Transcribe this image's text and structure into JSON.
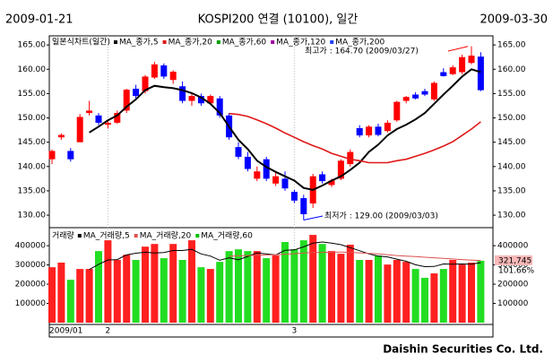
{
  "header": {
    "start_date": "2009-01-21",
    "title": "KOSPI200 연결 (10100), 일간",
    "end_date": "2009-03-30"
  },
  "chart_data": [
    {
      "type": "candlestick",
      "legend_title": "일본식차트(일간)",
      "categories": [
        "2009/01",
        null,
        null,
        null,
        null,
        null,
        "2",
        null,
        null,
        null,
        null,
        null,
        null,
        null,
        null,
        null,
        null,
        null,
        null,
        null,
        null,
        null,
        null,
        null,
        null,
        null,
        "3",
        null,
        null,
        null,
        null,
        null,
        null,
        null,
        null,
        null,
        null,
        null,
        null,
        null,
        null,
        null,
        null,
        null,
        null,
        null,
        null
      ],
      "open": [
        141.5,
        146.0,
        143.2,
        145.0,
        151.0,
        150.5,
        148.6,
        149.0,
        151.5,
        156.0,
        155.5,
        158.3,
        160.8,
        157.8,
        156.5,
        153.5,
        154.5,
        153.0,
        154.0,
        150.5,
        144.0,
        142.0,
        137.5,
        141.5,
        136.5,
        137.5,
        134.8,
        133.5,
        132.4,
        138.4,
        136.2,
        137.5,
        140.5,
        147.9,
        146.4,
        148.2,
        147.3,
        149.5,
        153.5,
        154.8,
        155.5,
        153.8,
        159.4,
        159.0,
        159.4,
        161.3,
        162.6
      ],
      "high": [
        143.5,
        146.8,
        143.8,
        150.8,
        153.5,
        151.0,
        149.5,
        151.5,
        156.0,
        156.8,
        158.8,
        161.5,
        161.2,
        159.8,
        157.5,
        155.0,
        155.0,
        154.8,
        154.5,
        151.0,
        145.0,
        143.0,
        140.0,
        142.0,
        139.0,
        139.0,
        135.2,
        134.2,
        138.5,
        139.0,
        137.5,
        141.5,
        143.5,
        148.5,
        148.5,
        148.8,
        149.5,
        153.5,
        154.5,
        155.3,
        156.0,
        157.5,
        160.2,
        160.8,
        163.0,
        164.7,
        163.5
      ],
      "low": [
        140.5,
        145.5,
        141.0,
        145.0,
        150.5,
        148.5,
        147.8,
        148.8,
        151.0,
        154.0,
        155.0,
        158.0,
        158.0,
        157.0,
        153.0,
        152.5,
        152.5,
        152.8,
        150.0,
        145.5,
        141.5,
        139.0,
        137.0,
        137.0,
        136.0,
        135.0,
        132.5,
        129.0,
        131.5,
        136.5,
        135.8,
        137.2,
        140.0,
        146.0,
        146.0,
        146.2,
        147.0,
        149.2,
        153.0,
        153.8,
        154.5,
        153.5,
        158.5,
        158.8,
        159.0,
        161.0,
        155.5
      ],
      "close": [
        143.2,
        146.5,
        141.5,
        150.2,
        151.5,
        149.0,
        149.0,
        151.0,
        155.8,
        154.5,
        158.5,
        161.0,
        158.5,
        159.5,
        153.5,
        154.5,
        153.0,
        154.5,
        150.5,
        146.0,
        142.0,
        139.5,
        139.0,
        137.5,
        138.0,
        135.5,
        133.0,
        130.2,
        138.0,
        137.0,
        137.1,
        141.2,
        143.0,
        146.4,
        148.2,
        146.5,
        149.0,
        153.3,
        154.3,
        154.0,
        154.8,
        157.2,
        158.6,
        160.4,
        162.5,
        162.8,
        155.7
      ],
      "up_color": "#ff0000",
      "down_color": "#0000ff",
      "series": [
        {
          "name": "MA_종가,5",
          "color": "#000000",
          "values": [
            null,
            null,
            null,
            null,
            147.0,
            148.2,
            149.5,
            150.5,
            152.3,
            153.8,
            155.7,
            156.6,
            156.3,
            156.1,
            155.7,
            155.1,
            154.2,
            152.9,
            151.0,
            148.2,
            145.5,
            143.6,
            141.2,
            139.9,
            138.9,
            138.0,
            137.1,
            135.6,
            135.2,
            136.1,
            137.1,
            138.0,
            139.3,
            140.8,
            143.0,
            144.5,
            146.4,
            147.7,
            148.6,
            149.7,
            151.0,
            152.9,
            154.8,
            156.6,
            158.5,
            160.0,
            159.4
          ]
        },
        {
          "name": "MA_종가,20",
          "color": "#e01818",
          "values": [
            null,
            null,
            null,
            null,
            null,
            null,
            null,
            null,
            null,
            null,
            null,
            null,
            null,
            null,
            null,
            null,
            null,
            null,
            null,
            150.9,
            150.7,
            150.3,
            149.6,
            148.8,
            147.9,
            146.9,
            146.0,
            145.1,
            144.3,
            143.6,
            142.7,
            142.1,
            141.5,
            141.2,
            140.8,
            140.8,
            140.8,
            141.2,
            141.5,
            142.1,
            142.7,
            143.4,
            144.2,
            145.1,
            146.4,
            147.7,
            149.2
          ]
        },
        {
          "name": "MA_종가,60",
          "color": "#00a000"
        },
        {
          "name": "MA_종가,120",
          "color": "#a000a0"
        },
        {
          "name": "MA_종가,200",
          "color": "#2040ff"
        }
      ],
      "ylim": [
        127.8,
        166.5
      ],
      "yticks": [
        {
          "value": 130,
          "label": "130.00"
        },
        {
          "value": 135,
          "label": "135.00"
        },
        {
          "value": 140,
          "label": "140.00"
        },
        {
          "value": 145,
          "label": "145.00"
        },
        {
          "value": 150,
          "label": "150.00"
        },
        {
          "value": 155,
          "label": "155.00"
        },
        {
          "value": 160,
          "label": "160.00"
        },
        {
          "value": 165,
          "label": "165.00"
        }
      ],
      "max_annotation": {
        "text": "최고가 : 164.70 (2009/03/27)",
        "color": "#ff0000"
      },
      "min_annotation": {
        "text": "최저가 : 129.00 (2009/03/03)",
        "color": "#0000ff"
      }
    },
    {
      "type": "volume",
      "legend_title": "거래량",
      "values": [
        288000,
        312000,
        223000,
        279000,
        279000,
        372000,
        428000,
        326000,
        353000,
        326000,
        395000,
        409000,
        335000,
        409000,
        326000,
        428000,
        288000,
        279000,
        316000,
        372000,
        381000,
        372000,
        372000,
        335000,
        349000,
        419000,
        381000,
        428000,
        456000,
        409000,
        372000,
        358000,
        405000,
        326000,
        326000,
        349000,
        302000,
        326000,
        316000,
        279000,
        233000,
        256000,
        279000,
        326000,
        302000,
        312000,
        321745
      ],
      "up_color": "#ff2020",
      "down_color": "#22dd22",
      "series": [
        {
          "name": "MA_거래량,5",
          "color": "#000000",
          "values": [
            null,
            null,
            null,
            null,
            276000,
            303000,
            326000,
            328000,
            352000,
            361000,
            366000,
            362000,
            364000,
            375000,
            375000,
            381000,
            357000,
            346000,
            324000,
            337000,
            327000,
            344000,
            363000,
            357000,
            352000,
            376000,
            378000,
            394000,
            413000,
            419000,
            413000,
            405000,
            390000,
            374000,
            357000,
            346000,
            342000,
            330000,
            319000,
            301000,
            291000,
            292000,
            305000,
            304000,
            305000,
            304000,
            312000
          ]
        },
        {
          "name": "MA_거래량,20",
          "color": "#e05050",
          "values": [
            null,
            null,
            null,
            null,
            null,
            null,
            null,
            null,
            null,
            null,
            null,
            null,
            null,
            null,
            null,
            null,
            null,
            null,
            null,
            345000,
            347000,
            349000,
            350000,
            352000,
            353000,
            356000,
            358000,
            362000,
            364000,
            365000,
            366000,
            367000,
            365000,
            363000,
            360000,
            357000,
            353000,
            349000,
            346000,
            343000,
            340000,
            337000,
            334000,
            331000,
            328000,
            325000,
            323000
          ]
        },
        {
          "name": "MA_거래량,60",
          "color": "#00c000"
        }
      ],
      "ylim": [
        0,
        475000
      ],
      "yticks": [
        100000,
        200000,
        300000,
        400000
      ],
      "last_value_label": "321,745",
      "ratio_label": "101.66%"
    }
  ],
  "footer": "Daishin Securities Co. Ltd."
}
